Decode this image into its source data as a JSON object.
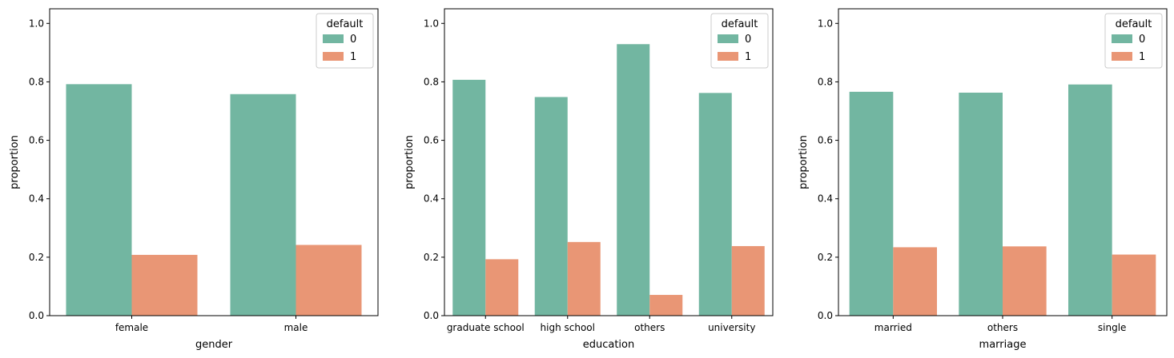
{
  "legend": {
    "title": "default",
    "entries": [
      "0",
      "1"
    ]
  },
  "colors": {
    "series_0": "#72b6a1",
    "series_1": "#e99675"
  },
  "chart_data": [
    {
      "type": "bar",
      "xlabel": "gender",
      "ylabel": "proportion",
      "categories": [
        "female",
        "male"
      ],
      "series": [
        {
          "name": "0",
          "values": [
            0.792,
            0.758
          ]
        },
        {
          "name": "1",
          "values": [
            0.208,
            0.242
          ]
        }
      ],
      "ylim": [
        0,
        1.05
      ],
      "yticks": [
        "0.0",
        "0.2",
        "0.4",
        "0.6",
        "0.8",
        "1.0"
      ],
      "grid": false,
      "legend_position": "top-right"
    },
    {
      "type": "bar",
      "xlabel": "education",
      "ylabel": "proportion",
      "categories": [
        "graduate school",
        "high school",
        "others",
        "university"
      ],
      "series": [
        {
          "name": "0",
          "values": [
            0.807,
            0.748,
            0.929,
            0.762
          ]
        },
        {
          "name": "1",
          "values": [
            0.193,
            0.252,
            0.071,
            0.238
          ]
        }
      ],
      "ylim": [
        0,
        1.05
      ],
      "yticks": [
        "0.0",
        "0.2",
        "0.4",
        "0.6",
        "0.8",
        "1.0"
      ],
      "grid": false,
      "legend_position": "top-right"
    },
    {
      "type": "bar",
      "xlabel": "marriage",
      "ylabel": "proportion",
      "categories": [
        "married",
        "others",
        "single"
      ],
      "series": [
        {
          "name": "0",
          "values": [
            0.766,
            0.763,
            0.791
          ]
        },
        {
          "name": "1",
          "values": [
            0.234,
            0.237,
            0.209
          ]
        }
      ],
      "ylim": [
        0,
        1.05
      ],
      "yticks": [
        "0.0",
        "0.2",
        "0.4",
        "0.6",
        "0.8",
        "1.0"
      ],
      "grid": false,
      "legend_position": "top-right"
    }
  ]
}
